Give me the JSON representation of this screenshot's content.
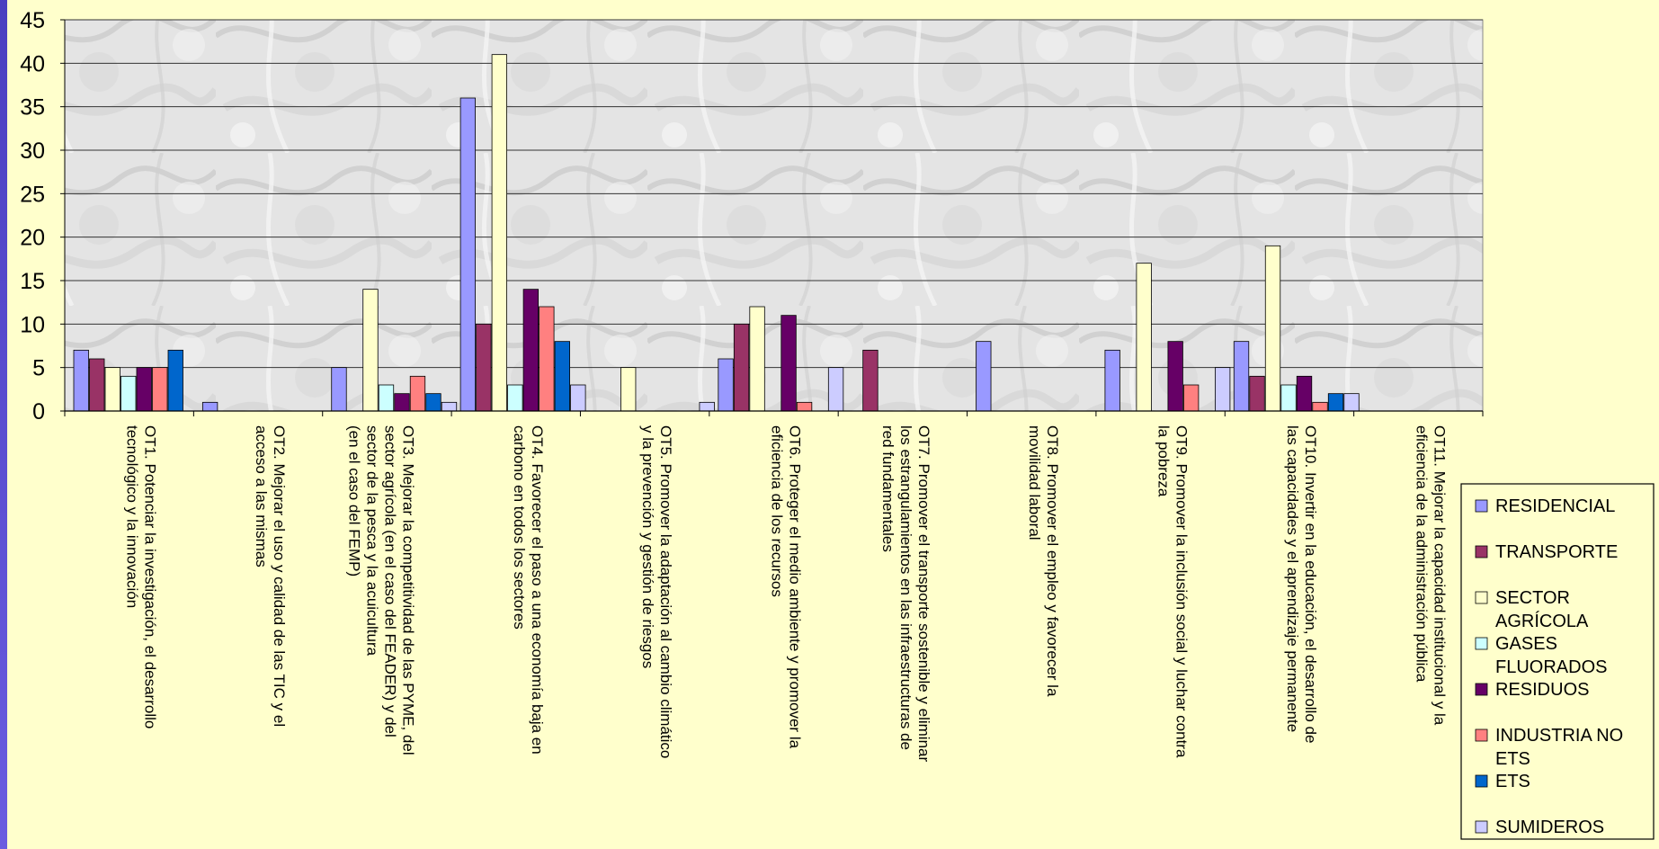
{
  "chart_data": {
    "type": "bar",
    "title": "",
    "xlabel": "",
    "ylabel": "",
    "ylim": [
      0,
      45
    ],
    "yticks": [
      0,
      5,
      10,
      15,
      20,
      25,
      30,
      35,
      40,
      45
    ],
    "grid": true,
    "legend_position": "right",
    "categories": [
      [
        "OT1. Potenciar la investigación, el desarrollo",
        "tecnológico y la innovación"
      ],
      [
        "OT2. Mejorar el uso y calidad de las TIC y el",
        "acceso a las mismas"
      ],
      [
        "OT3. Mejorar la competitividad de las PYME, del",
        "sector agrícola (en el caso del FEADER) y del",
        "sector de la pesca y la acuicultura",
        "(en el caso del FEMP)"
      ],
      [
        "OT4. Favorecer el paso a una economía baja en",
        "carbono en todos los sectores"
      ],
      [
        "OT5. Promover la adaptación al cambio climático",
        "y la prevención y gestión de riesgos"
      ],
      [
        "OT6. Proteger el medio ambiente y promover la",
        "eficiencia de los recursos"
      ],
      [
        "OT7. Promover el transporte sostenible y eliminar",
        "los estrangulamientos en las infraestructuras de",
        "red fundamentales"
      ],
      [
        "OT8. Promover el empleo y favorecer la",
        "movilidad laboral"
      ],
      [
        "OT9. Promover la inclusión social y luchar contra",
        "la pobreza"
      ],
      [
        "OT10. Invertir en la educación, el desarrollo de",
        "las capacidades y el aprendizaje permanente"
      ],
      [
        "OT11. Mejorar la capacidad institucional y la",
        "eficiencia de la administración pública"
      ]
    ],
    "series": [
      {
        "name": "RESIDENCIAL",
        "label_lines": [
          "RESIDENCIAL"
        ],
        "color": "#9999ff",
        "values": [
          7,
          1,
          5,
          36,
          0,
          6,
          0,
          8,
          7,
          8,
          0
        ]
      },
      {
        "name": "TRANSPORTE",
        "label_lines": [
          "TRANSPORTE"
        ],
        "color": "#993366",
        "values": [
          6,
          0,
          0,
          10,
          0,
          10,
          7,
          0,
          0,
          4,
          0
        ]
      },
      {
        "name": "SECTOR AGRÍCOLA",
        "label_lines": [
          "SECTOR",
          "AGRÍCOLA"
        ],
        "color": "#ffffcc",
        "values": [
          5,
          0,
          14,
          41,
          5,
          12,
          0,
          0,
          17,
          19,
          0
        ]
      },
      {
        "name": "GASES FLUORADOS",
        "label_lines": [
          "GASES",
          "FLUORADOS"
        ],
        "color": "#ccffff",
        "values": [
          4,
          0,
          3,
          3,
          0,
          0,
          0,
          0,
          0,
          3,
          0
        ]
      },
      {
        "name": "RESIDUOS",
        "label_lines": [
          "RESIDUOS"
        ],
        "color": "#660066",
        "values": [
          5,
          0,
          2,
          14,
          0,
          11,
          0,
          0,
          8,
          4,
          0
        ]
      },
      {
        "name": "INDUSTRIA NO ETS",
        "label_lines": [
          "INDUSTRIA NO",
          "ETS"
        ],
        "color": "#ff8080",
        "values": [
          5,
          0,
          4,
          12,
          0,
          1,
          0,
          0,
          3,
          1,
          0
        ]
      },
      {
        "name": "ETS",
        "label_lines": [
          "ETS"
        ],
        "color": "#0066cc",
        "values": [
          7,
          0,
          2,
          8,
          0,
          0,
          0,
          0,
          0,
          2,
          0
        ]
      },
      {
        "name": "SUMIDEROS",
        "label_lines": [
          "SUMIDEROS"
        ],
        "color": "#ccccff",
        "values": [
          0,
          0,
          1,
          3,
          1,
          5,
          0,
          0,
          5,
          2,
          0
        ]
      }
    ]
  }
}
